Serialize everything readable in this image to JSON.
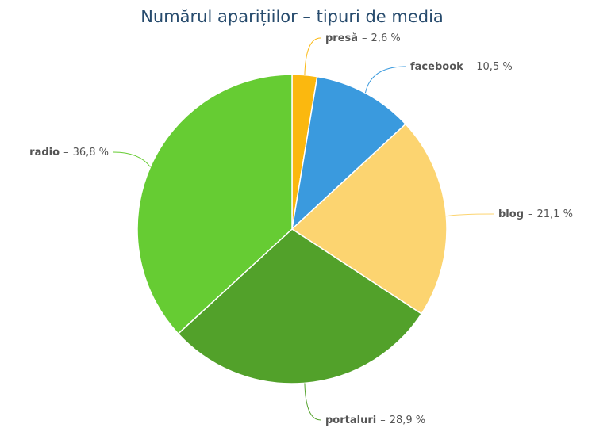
{
  "chart_data": {
    "type": "pie",
    "title": "Numărul aparițiilor – tipuri de media",
    "separator": "–",
    "categories": [
      "presă",
      "facebook",
      "blog",
      "portaluri",
      "radio"
    ],
    "values": [
      2.6,
      10.5,
      21.1,
      28.9,
      36.8
    ],
    "value_labels": [
      "2,6 %",
      "10,5 %",
      "21,1 %",
      "28,9 %",
      "36,8 %"
    ],
    "colors": [
      "#fbb80f",
      "#3a9ade",
      "#fcd470",
      "#52a12a",
      "#66cc33"
    ]
  }
}
